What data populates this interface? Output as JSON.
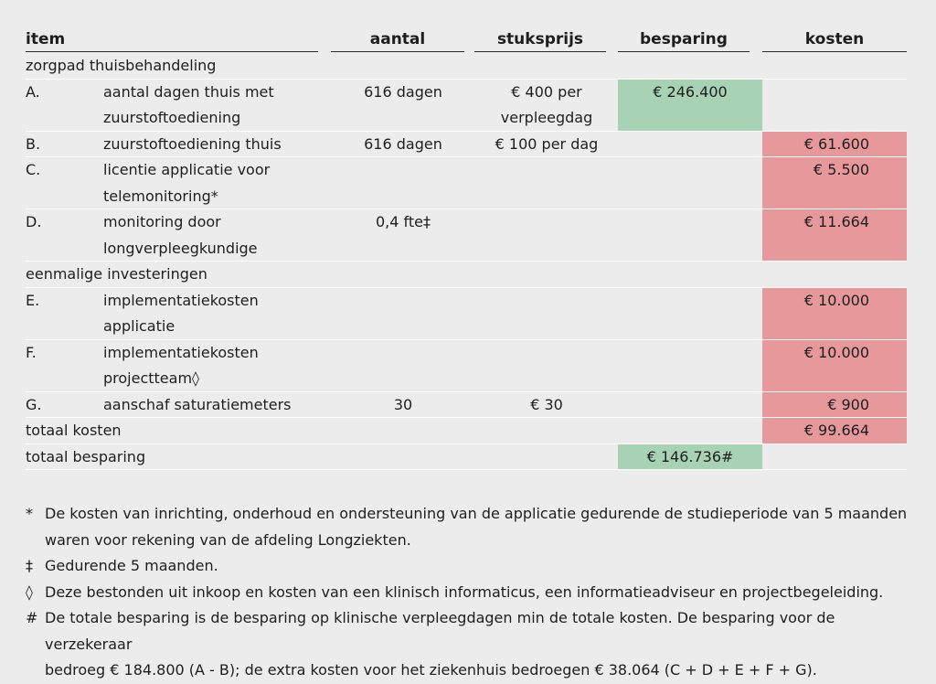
{
  "header": {
    "item": "item",
    "aantal": "aantal",
    "stuksprijs": "stuksprijs",
    "besparing": "besparing",
    "kosten": "kosten"
  },
  "sections": {
    "zorgpad": "zorgpad thuisbehandeling",
    "eenmalig": "eenmalige investeringen"
  },
  "rows": {
    "A": {
      "letter": "A.",
      "item": [
        "aantal dagen thuis met",
        "zuurstoftoediening"
      ],
      "aantal": "616 dagen",
      "stuksprijs": [
        "€ 400 per",
        "verpleegdag"
      ],
      "besparing": "€ 246.400",
      "kosten": ""
    },
    "B": {
      "letter": "B.",
      "item": [
        "zuurstoftoediening thuis"
      ],
      "aantal": "616 dagen",
      "stuksprijs": [
        "€ 100 per dag"
      ],
      "besparing": "",
      "kosten": "€ 61.600"
    },
    "C": {
      "letter": "C.",
      "item": [
        "licentie applicatie voor",
        "telemonitoring*"
      ],
      "aantal": "",
      "stuksprijs": [],
      "besparing": "",
      "kosten": "€ 5.500"
    },
    "D": {
      "letter": "D.",
      "item": [
        "monitoring door",
        "longverpleegkundige"
      ],
      "aantal": "0,4 fte‡",
      "stuksprijs": [],
      "besparing": "",
      "kosten": "€ 11.664"
    },
    "E": {
      "letter": "E.",
      "item": [
        "implementatiekosten",
        "applicatie"
      ],
      "aantal": "",
      "stuksprijs": [],
      "besparing": "",
      "kosten": "€ 10.000"
    },
    "F": {
      "letter": "F.",
      "item": [
        "implementatiekosten",
        "projectteam◊"
      ],
      "aantal": "",
      "stuksprijs": [],
      "besparing": "",
      "kosten": "€ 10.000"
    },
    "G": {
      "letter": "G.",
      "item": [
        "aanschaf saturatiemeters"
      ],
      "aantal": "30",
      "stuksprijs": [
        "€ 30"
      ],
      "besparing": "",
      "kosten": "€ 900"
    }
  },
  "totals": {
    "kosten_label": "totaal kosten",
    "kosten_value": "€ 99.664",
    "besparing_label": "totaal besparing",
    "besparing_value": "€ 146.736#"
  },
  "notes": [
    {
      "symbol": "*",
      "lines": [
        "De kosten van inrichting, onderhoud en ondersteuning van de applicatie gedurende de studieperiode van 5 maanden",
        "waren voor rekening van de afdeling Longziekten."
      ]
    },
    {
      "symbol": "‡",
      "lines": [
        "Gedurende 5 maanden."
      ]
    },
    {
      "symbol": "◊",
      "lines": [
        "Deze bestonden uit inkoop en kosten van een klinisch informaticus, een informatieadviseur en projectbegeleiding."
      ]
    },
    {
      "symbol": "#",
      "lines": [
        "De totale besparing is de besparing op klinische verpleegdagen min de totale kosten. De besparing voor de verzekeraar",
        "bedroeg € 184.800 (A - B); de extra kosten voor het ziekenhuis bedroegen € 38.064 (C + D + E + F + G)."
      ]
    }
  ],
  "colors": {
    "background": "#ececec",
    "saving": "#a8d2b4",
    "cost": "#e6989b"
  }
}
